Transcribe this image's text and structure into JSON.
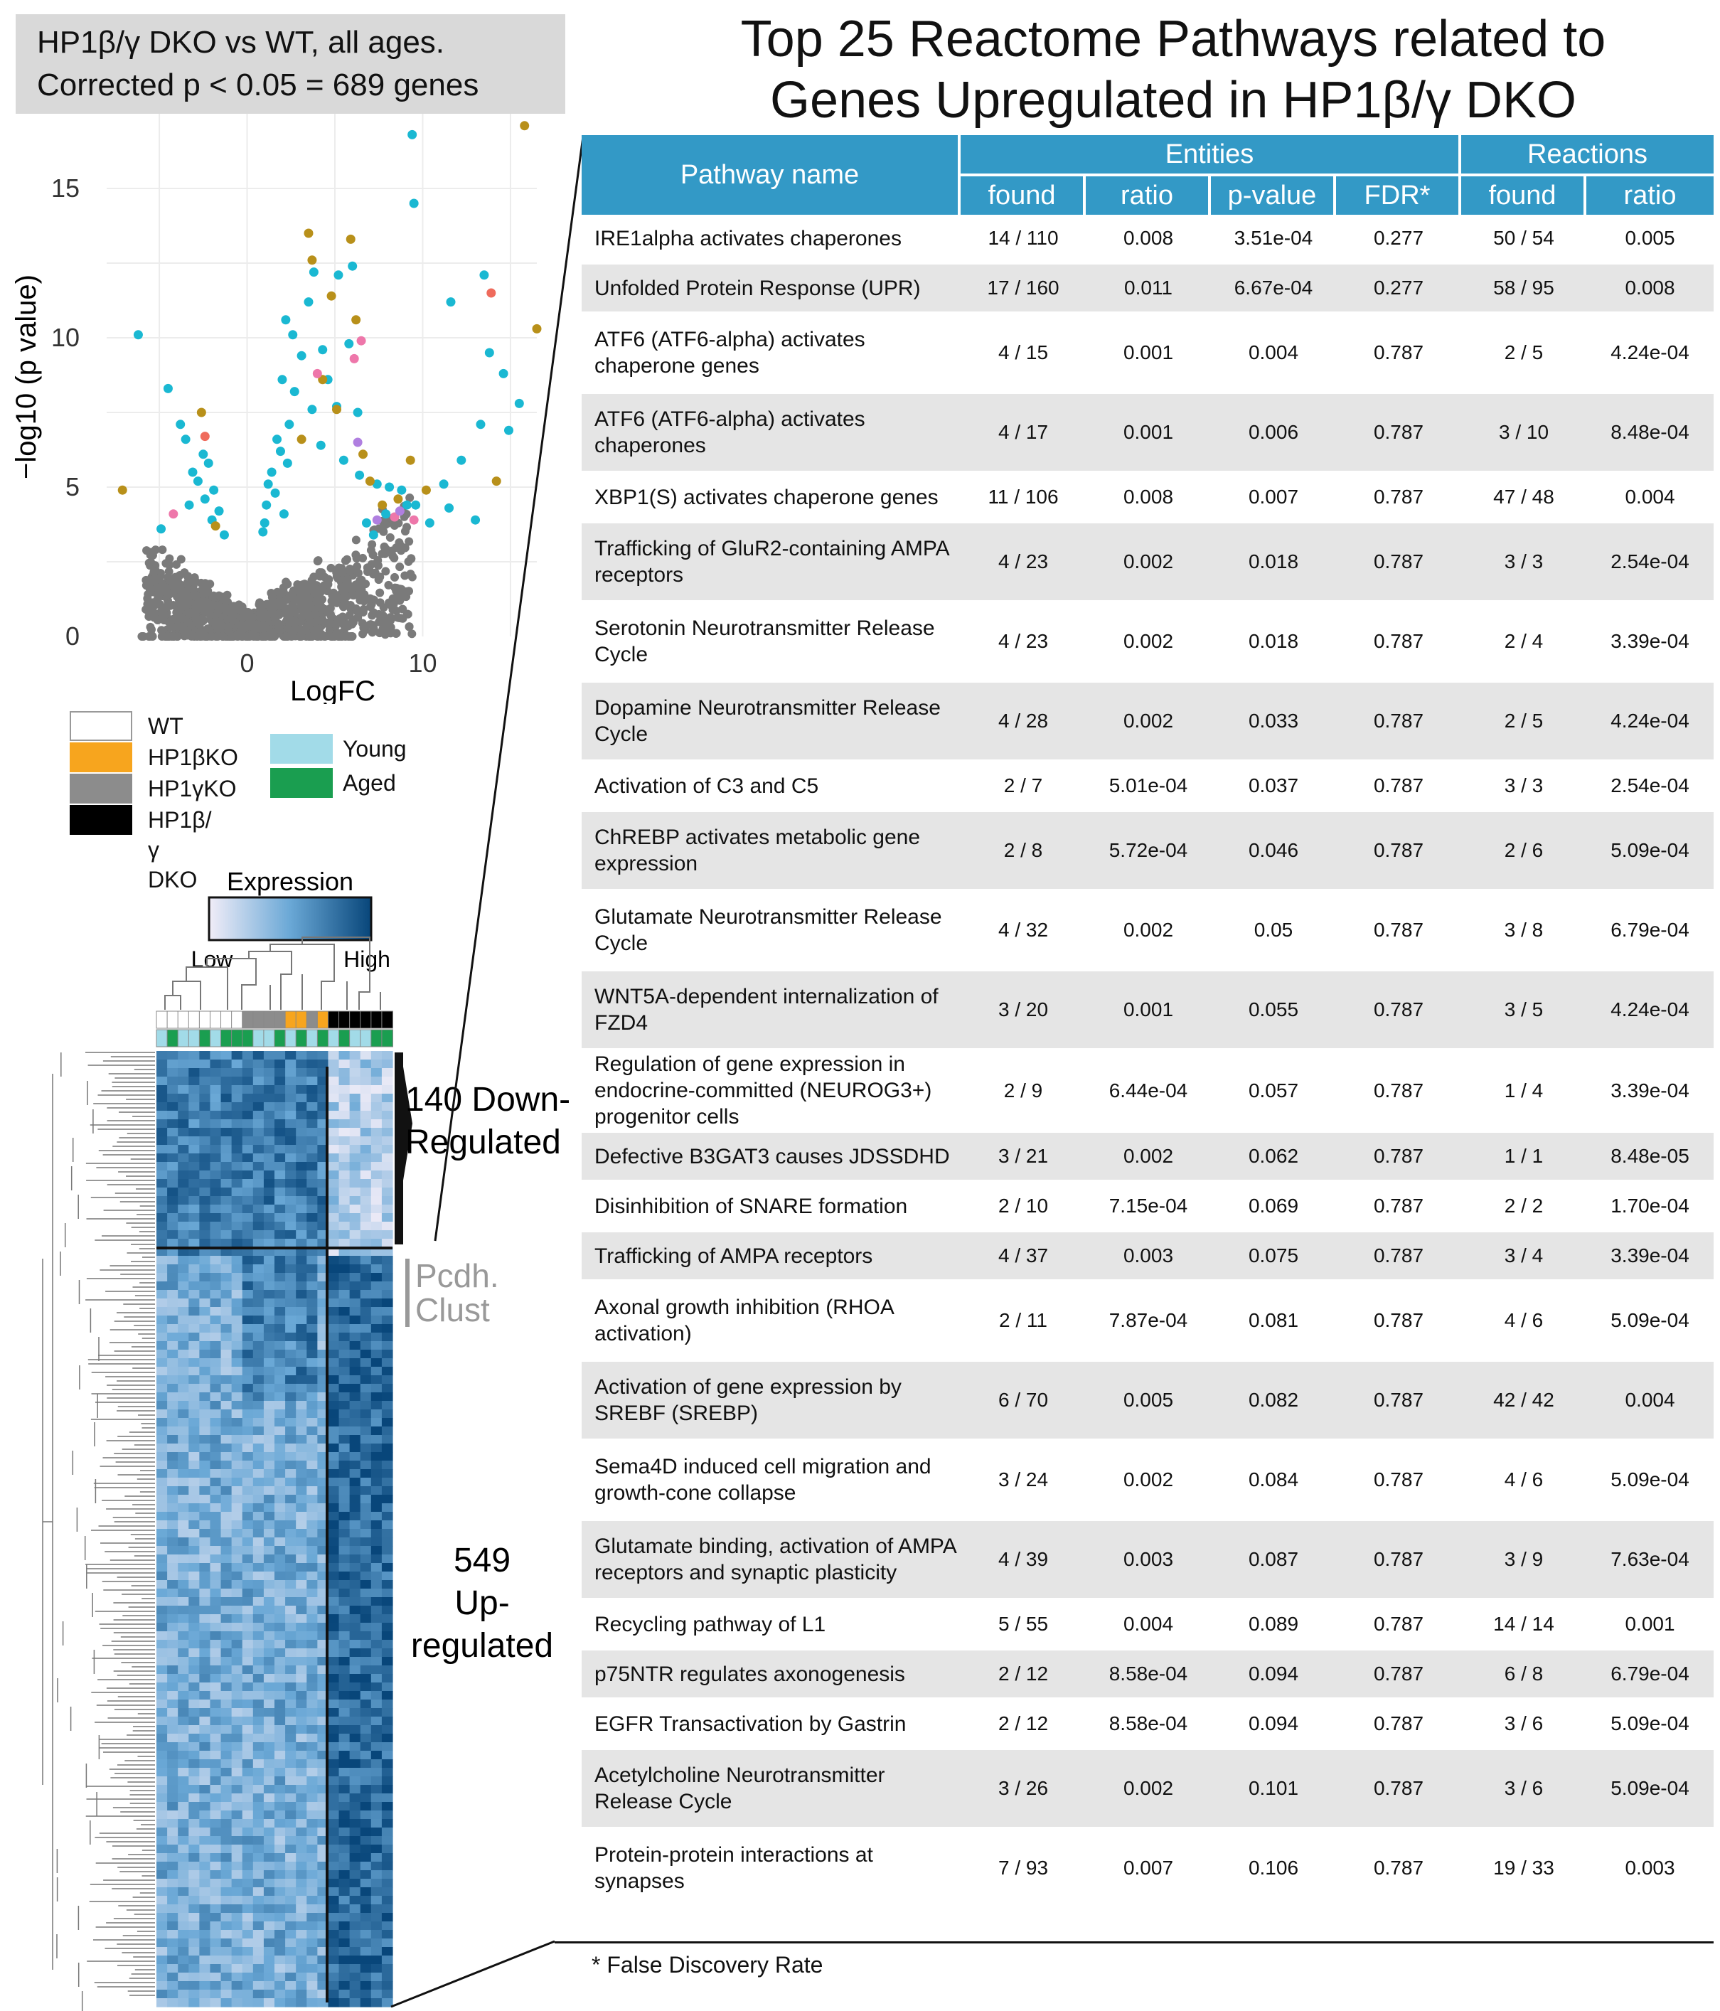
{
  "subtitle": {
    "line1": "HP1β/γ DKO vs WT, all ages.",
    "line2": "Corrected p < 0.05 = 689 genes"
  },
  "title": {
    "line1": "Top 25 Reactome Pathways related to",
    "line2": "Genes Upregulated in HP1β/γ DKO"
  },
  "chart_data": {
    "type": "scatter",
    "title": "",
    "xlabel": "LogFC",
    "ylabel": "−log10 (p value)",
    "x_ticks": [
      "0",
      "10"
    ],
    "y_ticks": [
      "0",
      "5",
      "10",
      "15"
    ],
    "xlim": [
      -8,
      16.5
    ],
    "ylim": [
      0,
      17.5
    ],
    "grid": true,
    "colors": {
      "nonsig": "#7a7a7a",
      "cyan": "#1ab8d2",
      "gold": "#b8901a",
      "pink": "#ee77aa",
      "violet": "#b07fe0",
      "red": "#ef6b5c"
    },
    "series": [
      {
        "color_key": "cyan",
        "points": [
          [
            -6.2,
            10.1
          ],
          [
            -4.5,
            8.3
          ],
          [
            -3.8,
            7.1
          ],
          [
            -3.5,
            6.6
          ],
          [
            -2.5,
            6.1
          ],
          [
            -2.2,
            5.8
          ],
          [
            -3.1,
            5.5
          ],
          [
            -2.8,
            5.2
          ],
          [
            -1.9,
            4.9
          ],
          [
            -2.4,
            4.6
          ],
          [
            -3.3,
            4.4
          ],
          [
            -1.6,
            4.2
          ],
          [
            -2.0,
            3.9
          ],
          [
            -4.9,
            3.6
          ],
          [
            -1.3,
            3.4
          ],
          [
            2.2,
            10.6
          ],
          [
            2.6,
            10.1
          ],
          [
            3.5,
            11.2
          ],
          [
            4.3,
            9.6
          ],
          [
            3.1,
            9.4
          ],
          [
            2.0,
            8.6
          ],
          [
            2.7,
            8.2
          ],
          [
            3.7,
            7.6
          ],
          [
            2.4,
            7.1
          ],
          [
            1.7,
            6.6
          ],
          [
            1.9,
            6.2
          ],
          [
            2.3,
            5.8
          ],
          [
            1.4,
            5.5
          ],
          [
            1.2,
            5.1
          ],
          [
            1.6,
            4.8
          ],
          [
            1.1,
            4.4
          ],
          [
            2.1,
            4.1
          ],
          [
            1.0,
            3.8
          ],
          [
            0.9,
            3.5
          ],
          [
            3.8,
            12.2
          ],
          [
            5.2,
            12.1
          ],
          [
            6.0,
            12.4
          ],
          [
            5.8,
            9.8
          ],
          [
            4.6,
            8.6
          ],
          [
            5.1,
            7.7
          ],
          [
            6.3,
            7.5
          ],
          [
            4.2,
            6.4
          ],
          [
            5.5,
            5.9
          ],
          [
            6.4,
            5.4
          ],
          [
            7.4,
            5.1
          ],
          [
            8.1,
            5.0
          ],
          [
            8.8,
            4.9
          ],
          [
            9.1,
            4.4
          ],
          [
            7.9,
            4.1
          ],
          [
            6.8,
            3.8
          ],
          [
            7.2,
            3.4
          ],
          [
            9.6,
            4.4
          ],
          [
            10.4,
            3.8
          ],
          [
            11.2,
            5.1
          ],
          [
            11.5,
            4.3
          ],
          [
            13.0,
            3.9
          ],
          [
            11.6,
            11.2
          ],
          [
            13.5,
            12.1
          ],
          [
            13.8,
            9.5
          ],
          [
            14.6,
            8.8
          ],
          [
            13.3,
            7.1
          ],
          [
            14.9,
            6.9
          ],
          [
            12.2,
            5.9
          ],
          [
            9.5,
            14.5
          ],
          [
            9.4,
            16.8
          ],
          [
            15.5,
            7.8
          ]
        ]
      },
      {
        "color_key": "gold",
        "points": [
          [
            -7.1,
            4.9
          ],
          [
            -2.6,
            7.5
          ],
          [
            -1.8,
            3.7
          ],
          [
            3.1,
            6.6
          ],
          [
            3.5,
            13.5
          ],
          [
            3.7,
            12.6
          ],
          [
            4.8,
            11.4
          ],
          [
            4.3,
            8.6
          ],
          [
            5.1,
            7.6
          ],
          [
            5.9,
            13.3
          ],
          [
            6.2,
            10.6
          ],
          [
            6.6,
            6.1
          ],
          [
            7.0,
            5.2
          ],
          [
            7.7,
            4.4
          ],
          [
            8.6,
            4.6
          ],
          [
            9.3,
            5.9
          ],
          [
            10.2,
            4.9
          ],
          [
            14.2,
            5.2
          ],
          [
            15.8,
            17.1
          ],
          [
            16.5,
            10.3
          ]
        ]
      },
      {
        "color_key": "pink",
        "points": [
          [
            4.0,
            8.8
          ],
          [
            6.1,
            9.3
          ],
          [
            6.5,
            9.9
          ],
          [
            8.4,
            4.0
          ],
          [
            9.5,
            3.9
          ],
          [
            -4.2,
            4.1
          ]
        ]
      },
      {
        "color_key": "violet",
        "points": [
          [
            7.4,
            3.9
          ],
          [
            8.7,
            4.2
          ],
          [
            6.3,
            6.5
          ]
        ]
      },
      {
        "color_key": "red",
        "points": [
          [
            13.9,
            11.5
          ],
          [
            -2.4,
            6.7
          ]
        ]
      }
    ]
  },
  "legend": {
    "genotype": [
      {
        "label": "WT",
        "color": "#ffffff"
      },
      {
        "label": "HP1βKO",
        "color": "#f7a51e"
      },
      {
        "label": "HP1γKO",
        "color": "#8c8c8c"
      },
      {
        "label": "HP1β/γ DKO",
        "color": "#000000"
      }
    ],
    "age": [
      {
        "label": "Young",
        "color": "#a2dbe8"
      },
      {
        "label": "Aged",
        "color": "#1a9e50"
      }
    ]
  },
  "heatmap": {
    "colorbar_title": "Expression",
    "low_label": "Low",
    "high_label": "High",
    "down_label": {
      "line1": "140 Down-",
      "line2": "Regulated"
    },
    "cluster_label": {
      "line1": "Pcdh.",
      "line2": "Clust"
    },
    "up_label": {
      "line1": "549",
      "line2": "Up-",
      "line3": "regulated"
    },
    "genotype_row": [
      "#ffffff",
      "#ffffff",
      "#ffffff",
      "#ffffff",
      "#ffffff",
      "#ffffff",
      "#ffffff",
      "#ffffff",
      "#8c8c8c",
      "#8c8c8c",
      "#8c8c8c",
      "#8c8c8c",
      "#f7a51e",
      "#f7a51e",
      "#8c8c8c",
      "#f7a51e",
      "#000000",
      "#000000",
      "#000000",
      "#000000",
      "#000000",
      "#000000"
    ],
    "age_row": [
      "#a2dbe8",
      "#1a9e50",
      "#a2dbe8",
      "#a2dbe8",
      "#1a9e50",
      "#a2dbe8",
      "#1a9e50",
      "#1a9e50",
      "#1a9e50",
      "#a2dbe8",
      "#a2dbe8",
      "#1a9e50",
      "#a2dbe8",
      "#1a9e50",
      "#a2dbe8",
      "#1a9e50",
      "#a2dbe8",
      "#1a9e50",
      "#a2dbe8",
      "#a2dbe8",
      "#1a9e50",
      "#1a9e50"
    ]
  },
  "table": {
    "header": {
      "pathway_name": "Pathway name",
      "entities": "Entities",
      "reactions": "Reactions",
      "found": "found",
      "ratio": "ratio",
      "pvalue": "p-value",
      "fdr": "FDR*",
      "r_found": "found",
      "r_ratio": "ratio"
    },
    "rows": [
      {
        "name": "IRE1alpha activates chaperones",
        "found": "14 / 110",
        "ratio": "0.008",
        "pvalue": "3.51e-04",
        "fdr": "0.277",
        "r_found": "50 / 54",
        "r_ratio": "0.005"
      },
      {
        "name": "Unfolded Protein Response (UPR)",
        "found": "17 / 160",
        "ratio": "0.011",
        "pvalue": "6.67e-04",
        "fdr": "0.277",
        "r_found": "58 / 95",
        "r_ratio": "0.008"
      },
      {
        "name": "ATF6 (ATF6-alpha) activates chaperone genes",
        "found": "4 / 15",
        "ratio": "0.001",
        "pvalue": "0.004",
        "fdr": "0.787",
        "r_found": "2 / 5",
        "r_ratio": "4.24e-04"
      },
      {
        "name": "ATF6 (ATF6-alpha) activates chaperones",
        "found": "4 / 17",
        "ratio": "0.001",
        "pvalue": "0.006",
        "fdr": "0.787",
        "r_found": "3 / 10",
        "r_ratio": "8.48e-04"
      },
      {
        "name": "XBP1(S) activates chaperone genes",
        "found": "11 / 106",
        "ratio": "0.008",
        "pvalue": "0.007",
        "fdr": "0.787",
        "r_found": "47 / 48",
        "r_ratio": "0.004"
      },
      {
        "name": "Trafficking of GluR2-containing AMPA receptors",
        "found": "4 / 23",
        "ratio": "0.002",
        "pvalue": "0.018",
        "fdr": "0.787",
        "r_found": "3 / 3",
        "r_ratio": "2.54e-04"
      },
      {
        "name": "Serotonin Neurotransmitter Release Cycle",
        "found": "4 / 23",
        "ratio": "0.002",
        "pvalue": "0.018",
        "fdr": "0.787",
        "r_found": "2 / 4",
        "r_ratio": "3.39e-04"
      },
      {
        "name": "Dopamine Neurotransmitter Release Cycle",
        "found": "4 / 28",
        "ratio": "0.002",
        "pvalue": "0.033",
        "fdr": "0.787",
        "r_found": "2 / 5",
        "r_ratio": "4.24e-04"
      },
      {
        "name": "Activation of C3 and C5",
        "found": "2 / 7",
        "ratio": "5.01e-04",
        "pvalue": "0.037",
        "fdr": "0.787",
        "r_found": "3 / 3",
        "r_ratio": "2.54e-04"
      },
      {
        "name": "ChREBP activates metabolic gene expression",
        "found": "2 / 8",
        "ratio": "5.72e-04",
        "pvalue": "0.046",
        "fdr": "0.787",
        "r_found": "2 / 6",
        "r_ratio": "5.09e-04"
      },
      {
        "name": "Glutamate Neurotransmitter Release Cycle",
        "found": "4 / 32",
        "ratio": "0.002",
        "pvalue": "0.05",
        "fdr": "0.787",
        "r_found": "3 / 8",
        "r_ratio": "6.79e-04"
      },
      {
        "name": "WNT5A-dependent internalization of FZD4",
        "found": "3 / 20",
        "ratio": "0.001",
        "pvalue": "0.055",
        "fdr": "0.787",
        "r_found": "3 / 5",
        "r_ratio": "4.24e-04"
      },
      {
        "name": "Regulation of gene expression in endocrine-committed (NEUROG3+) progenitor cells",
        "found": "2 / 9",
        "ratio": "6.44e-04",
        "pvalue": "0.057",
        "fdr": "0.787",
        "r_found": "1 / 4",
        "r_ratio": "3.39e-04"
      },
      {
        "name": "Defective B3GAT3 causes JDSSDHD",
        "found": "3 / 21",
        "ratio": "0.002",
        "pvalue": "0.062",
        "fdr": "0.787",
        "r_found": "1 / 1",
        "r_ratio": "8.48e-05"
      },
      {
        "name": "Disinhibition of SNARE formation",
        "found": "2 / 10",
        "ratio": "7.15e-04",
        "pvalue": "0.069",
        "fdr": "0.787",
        "r_found": "2 / 2",
        "r_ratio": "1.70e-04"
      },
      {
        "name": "Trafficking of AMPA receptors",
        "found": "4 / 37",
        "ratio": "0.003",
        "pvalue": "0.075",
        "fdr": "0.787",
        "r_found": "3 / 4",
        "r_ratio": "3.39e-04"
      },
      {
        "name": "Axonal growth inhibition (RHOA activation)",
        "found": "2 / 11",
        "ratio": "7.87e-04",
        "pvalue": "0.081",
        "fdr": "0.787",
        "r_found": "4 / 6",
        "r_ratio": "5.09e-04"
      },
      {
        "name": "Activation of gene expression by SREBF (SREBP)",
        "found": "6 / 70",
        "ratio": "0.005",
        "pvalue": "0.082",
        "fdr": "0.787",
        "r_found": "42 / 42",
        "r_ratio": "0.004"
      },
      {
        "name": "Sema4D induced cell migration and growth-cone collapse",
        "found": "3 / 24",
        "ratio": "0.002",
        "pvalue": "0.084",
        "fdr": "0.787",
        "r_found": "4 / 6",
        "r_ratio": "5.09e-04"
      },
      {
        "name": "Glutamate binding, activation of AMPA receptors and synaptic plasticity",
        "found": "4 / 39",
        "ratio": "0.003",
        "pvalue": "0.087",
        "fdr": "0.787",
        "r_found": "3 / 9",
        "r_ratio": "7.63e-04"
      },
      {
        "name": "Recycling pathway of L1",
        "found": "5 / 55",
        "ratio": "0.004",
        "pvalue": "0.089",
        "fdr": "0.787",
        "r_found": "14 / 14",
        "r_ratio": "0.001"
      },
      {
        "name": "p75NTR regulates axonogenesis",
        "found": "2 / 12",
        "ratio": "8.58e-04",
        "pvalue": "0.094",
        "fdr": "0.787",
        "r_found": "6 / 8",
        "r_ratio": "6.79e-04"
      },
      {
        "name": "EGFR Transactivation by Gastrin",
        "found": "2 / 12",
        "ratio": "8.58e-04",
        "pvalue": "0.094",
        "fdr": "0.787",
        "r_found": "3 / 6",
        "r_ratio": "5.09e-04"
      },
      {
        "name": "Acetylcholine Neurotransmitter Release Cycle",
        "found": "3 / 26",
        "ratio": "0.002",
        "pvalue": "0.101",
        "fdr": "0.787",
        "r_found": "3 / 6",
        "r_ratio": "5.09e-04"
      },
      {
        "name": "Protein-protein interactions at synapses",
        "found": "7 / 93",
        "ratio": "0.007",
        "pvalue": "0.106",
        "fdr": "0.787",
        "r_found": "19 / 33",
        "r_ratio": "0.003"
      }
    ]
  },
  "footnote": "* False Discovery Rate"
}
